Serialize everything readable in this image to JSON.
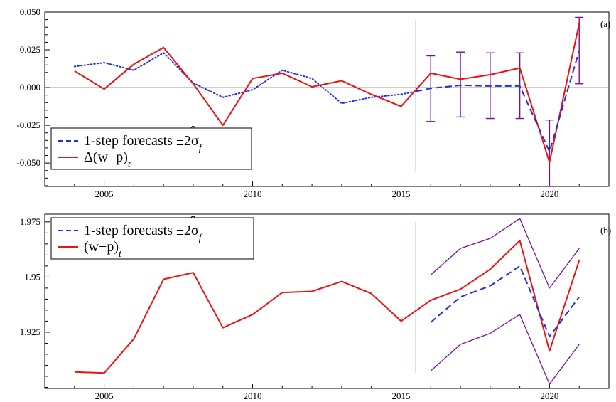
{
  "chart_data": [
    {
      "type": "line",
      "panel_label": "(a)",
      "xlim": [
        2003.0,
        2022.0
      ],
      "ylim": [
        -0.0655,
        0.05
      ],
      "xticks": [
        2005,
        2010,
        2015,
        2020
      ],
      "yticks": [
        {
          "value": 0.05,
          "label": "0.050"
        },
        {
          "value": 0.025,
          "label": "0.025"
        },
        {
          "value": 0.0,
          "label": "0.000"
        },
        {
          "value": -0.025,
          "label": "-0.025"
        },
        {
          "value": -0.05,
          "label": "-0.050"
        }
      ],
      "zero_line": true,
      "forecast_origin": 2015.5,
      "legend_position": "bottom-left",
      "legend": [
        {
          "text": "1-step forecasts ±2σ",
          "hat_letter": "ˆ",
          "subscript": "f",
          "style": "dashed",
          "color": "#1f2fe0"
        },
        {
          "text": "Δ(w−p)",
          "subscript": "t",
          "style": "solid",
          "color": "#ee1111"
        }
      ],
      "series": [
        {
          "name": "fitted",
          "style": "dotted",
          "color": "#1f2fe0",
          "x": [
            2004,
            2005,
            2006,
            2007,
            2008,
            2009,
            2010,
            2011,
            2012,
            2013,
            2014,
            2015,
            2015.5
          ],
          "y": [
            0.014,
            0.0165,
            0.0115,
            0.023,
            0.003,
            -0.0065,
            -0.0015,
            0.0115,
            0.006,
            -0.0105,
            -0.0065,
            -0.0045,
            -0.0025
          ]
        },
        {
          "name": "Δ(w−p)",
          "style": "solid",
          "color": "#ee1111",
          "x": [
            2004,
            2005,
            2006,
            2007,
            2008,
            2009,
            2010,
            2011,
            2012,
            2013,
            2014,
            2015,
            2016,
            2017,
            2018,
            2019,
            2020,
            2021
          ],
          "y": [
            0.011,
            -0.001,
            0.0155,
            0.0265,
            0.0025,
            -0.025,
            0.006,
            0.0095,
            0.0005,
            0.0045,
            -0.0045,
            -0.0125,
            0.0095,
            0.0055,
            0.0085,
            0.013,
            -0.0495,
            0.0425
          ]
        },
        {
          "name": "1-step forecasts",
          "style": "dashed",
          "color": "#1f2fe0",
          "x": [
            2015.5,
            2016,
            2017,
            2018,
            2019,
            2020,
            2021
          ],
          "y": [
            -0.0025,
            -0.0005,
            0.0015,
            0.001,
            0.001,
            -0.0425,
            0.0245
          ]
        }
      ],
      "error_bars": {
        "color": "#7b0f9b",
        "x": [
          2016,
          2017,
          2018,
          2019,
          2020,
          2021
        ],
        "low": [
          -0.0225,
          -0.0195,
          -0.0205,
          -0.0205,
          -0.0655,
          0.0025
        ],
        "high": [
          0.021,
          0.0235,
          0.023,
          0.023,
          -0.0215,
          0.0465
        ]
      }
    },
    {
      "type": "line",
      "panel_label": "(b)",
      "xlim": [
        2003.0,
        2022.0
      ],
      "ylim": [
        1.8995,
        1.9785
      ],
      "xticks": [
        2005,
        2010,
        2015,
        2020
      ],
      "yticks": [
        {
          "value": 1.975,
          "label": "1.975"
        },
        {
          "value": 1.95,
          "label": "1.95"
        },
        {
          "value": 1.925,
          "label": "1.925"
        }
      ],
      "zero_line": false,
      "forecast_origin": 2015.5,
      "legend_position": "top-left",
      "legend": [
        {
          "text": "1-step forecasts ±2σ",
          "hat_letter": "ˆ",
          "subscript": "f",
          "style": "dashed",
          "color": "#1f2fe0"
        },
        {
          "text": "(w−p)",
          "subscript": "t",
          "style": "solid",
          "color": "#ee1111"
        }
      ],
      "series": [
        {
          "name": "(w−p)",
          "style": "solid",
          "color": "#ee1111",
          "x": [
            2004,
            2005,
            2006,
            2007,
            2008,
            2009,
            2010,
            2011,
            2012,
            2013,
            2014,
            2015,
            2016,
            2017,
            2018,
            2019,
            2020,
            2021
          ],
          "y": [
            1.907,
            1.9065,
            1.922,
            1.949,
            1.952,
            1.927,
            1.933,
            1.943,
            1.9435,
            1.948,
            1.9425,
            1.93,
            1.9395,
            1.9445,
            1.9535,
            1.9665,
            1.9165,
            1.9575
          ]
        },
        {
          "name": "1-step forecasts",
          "style": "dashed",
          "color": "#1f2fe0",
          "x": [
            2016,
            2017,
            2018,
            2019,
            2020,
            2021
          ],
          "y": [
            1.9295,
            1.941,
            1.946,
            1.955,
            1.923,
            1.941
          ]
        },
        {
          "name": "upper band",
          "style": "solid",
          "color": "#7b0f9b",
          "x": [
            2016,
            2017,
            2018,
            2019,
            2020,
            2021
          ],
          "y": [
            1.951,
            1.963,
            1.9675,
            1.9765,
            1.945,
            1.963
          ]
        },
        {
          "name": "lower band",
          "style": "solid",
          "color": "#7b0f9b",
          "x": [
            2016,
            2017,
            2018,
            2019,
            2020,
            2021
          ],
          "y": [
            1.9075,
            1.9195,
            1.9245,
            1.933,
            1.9015,
            1.9195
          ]
        }
      ]
    }
  ]
}
